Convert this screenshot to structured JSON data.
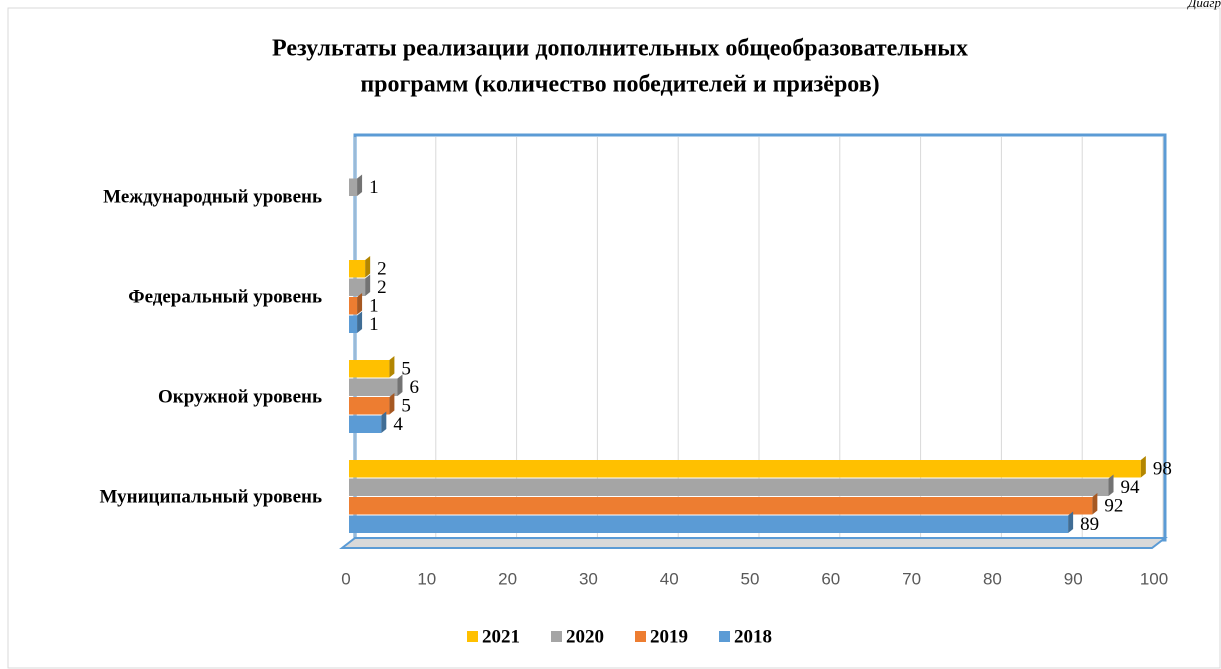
{
  "chart_data": {
    "type": "bar",
    "orientation": "horizontal",
    "annotation": "Диагр",
    "title": [
      "Результаты реализации дополнительных общеобразовательных",
      "программ (количество победителей и призёров)"
    ],
    "categories": [
      "Международный уровень",
      "Федеральный уровень",
      "Окружной уровень",
      "Муниципальный уровень"
    ],
    "series": [
      {
        "name": "2021",
        "color": "#ffc000",
        "values": [
          null,
          2,
          5,
          98
        ]
      },
      {
        "name": "2020",
        "color": "#a5a5a5",
        "values": [
          1,
          2,
          6,
          94
        ]
      },
      {
        "name": "2019",
        "color": "#ed7d31",
        "values": [
          null,
          1,
          5,
          92
        ]
      },
      {
        "name": "2018",
        "color": "#5b9bd5",
        "values": [
          null,
          1,
          4,
          89
        ]
      }
    ],
    "xlim": [
      0,
      100
    ],
    "xticks": [
      0,
      10,
      20,
      30,
      40,
      50,
      60,
      70,
      80,
      90,
      100
    ],
    "grid": true,
    "legend": "bottom"
  }
}
